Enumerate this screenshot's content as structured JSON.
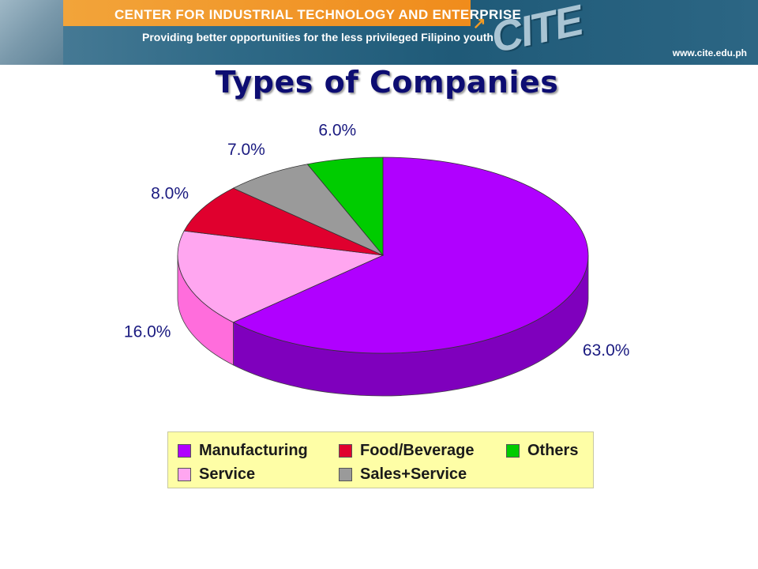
{
  "banner": {
    "title": "CENTER FOR INDUSTRIAL TECHNOLOGY AND ENTERPRISE",
    "subtitle": "Providing better opportunities for the less privileged Filipino youth",
    "logo_text": "CITE",
    "url": "www.cite.edu.ph"
  },
  "page": {
    "title": "Types of Companies"
  },
  "chart_data": {
    "type": "pie",
    "title": "Types of Companies",
    "style": "3d",
    "slices": [
      {
        "label": "Manufacturing",
        "value": 63.0,
        "display": "63.0%",
        "color": "#b000ff",
        "side_color": "#7f00bd"
      },
      {
        "label": "Service",
        "value": 16.0,
        "display": "16.0%",
        "color": "#ffa6f0",
        "side_color": "#ff6ddc"
      },
      {
        "label": "Food/Beverage",
        "value": 8.0,
        "display": "8.0%",
        "color": "#e0002e",
        "side_color": "#a8001f"
      },
      {
        "label": "Sales+Service",
        "value": 7.0,
        "display": "7.0%",
        "color": "#9a9a9a",
        "side_color": "#6e6e6e"
      },
      {
        "label": "Others",
        "value": 6.0,
        "display": "6.0%",
        "color": "#00cc00",
        "side_color": "#008f00"
      }
    ],
    "legend": {
      "position": "bottom"
    }
  }
}
